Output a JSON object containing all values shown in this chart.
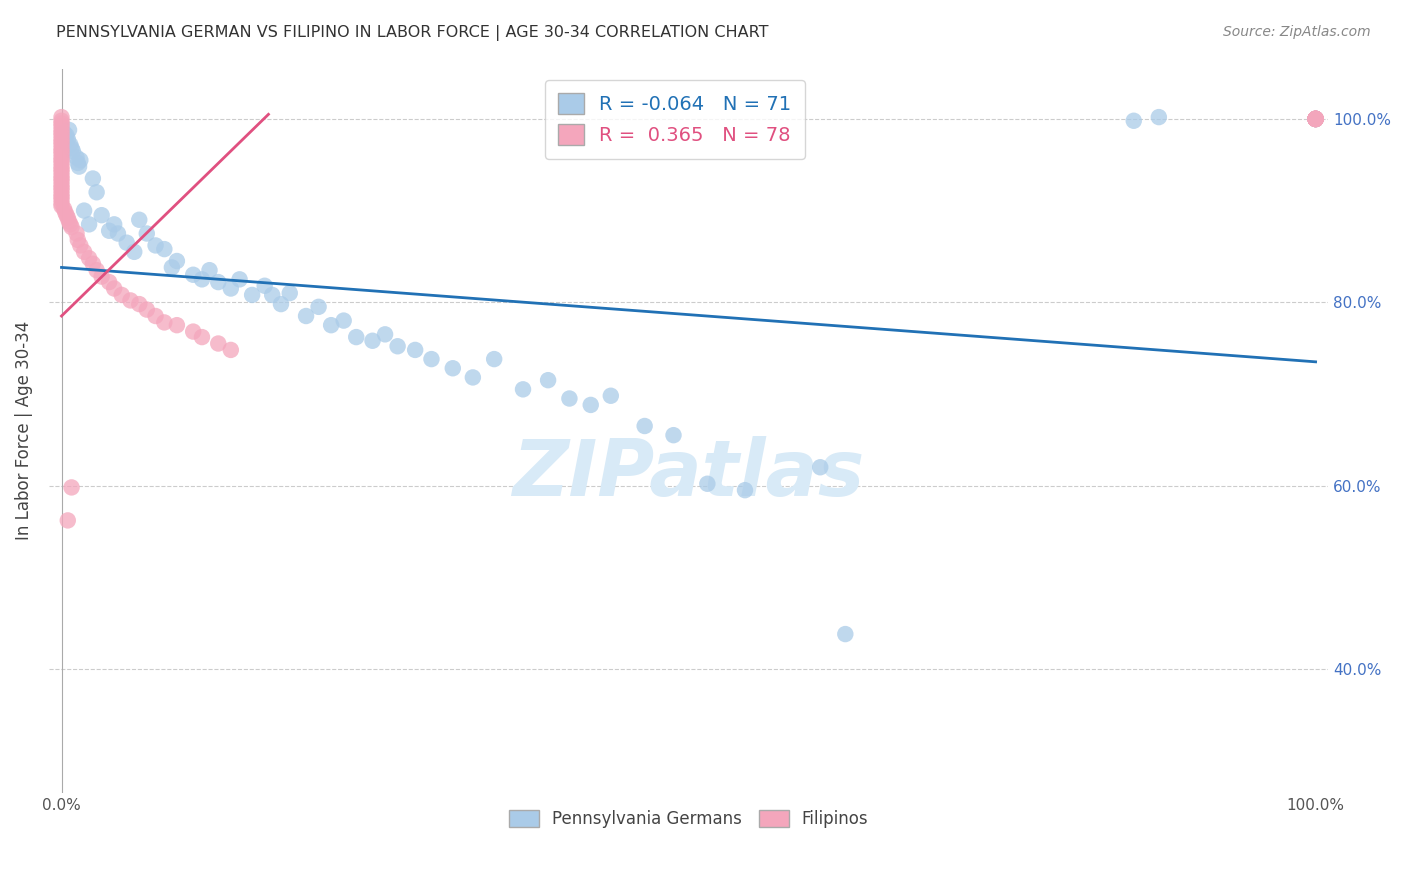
{
  "title": "PENNSYLVANIA GERMAN VS FILIPINO IN LABOR FORCE | AGE 30-34 CORRELATION CHART",
  "source": "Source: ZipAtlas.com",
  "ylabel": "In Labor Force | Age 30-34",
  "x_tick_labels": [
    "0.0%",
    "",
    "",
    "",
    "",
    "100.0%"
  ],
  "x_tick_vals": [
    0,
    0.2,
    0.4,
    0.6,
    0.8,
    1.0
  ],
  "y_tick_vals_right": [
    1.0,
    0.8,
    0.6,
    0.4
  ],
  "y_tick_labels_right": [
    "100.0%",
    "80.0%",
    "60.0%",
    "40.0%"
  ],
  "xlim": [
    -0.01,
    1.01
  ],
  "ylim": [
    0.265,
    1.055
  ],
  "legend_label_blue": "Pennsylvania Germans",
  "legend_label_pink": "Filipinos",
  "R_blue": -0.064,
  "N_blue": 71,
  "R_pink": 0.365,
  "N_pink": 78,
  "blue_trendline_x": [
    0.0,
    1.0
  ],
  "blue_trendline_y": [
    0.838,
    0.735
  ],
  "pink_trendline_x": [
    0.0,
    0.165
  ],
  "pink_trendline_y": [
    0.785,
    1.005
  ],
  "blue_color": "#aacbe8",
  "blue_line_color": "#2171b5",
  "pink_color": "#f4a6bc",
  "pink_line_color": "#e05080",
  "background_color": "#ffffff",
  "grid_color": "#cccccc",
  "watermark_color": "#d8eaf7",
  "blue_x": [
    0.002,
    0.003,
    0.004,
    0.005,
    0.006,
    0.007,
    0.008,
    0.009,
    0.012,
    0.013,
    0.014,
    0.015,
    0.018,
    0.022,
    0.025,
    0.028,
    0.032,
    0.038,
    0.042,
    0.045,
    0.052,
    0.058,
    0.062,
    0.068,
    0.075,
    0.082,
    0.088,
    0.092,
    0.105,
    0.112,
    0.118,
    0.125,
    0.135,
    0.142,
    0.152,
    0.162,
    0.168,
    0.175,
    0.182,
    0.195,
    0.205,
    0.215,
    0.225,
    0.235,
    0.248,
    0.258,
    0.268,
    0.282,
    0.295,
    0.312,
    0.328,
    0.345,
    0.368,
    0.388,
    0.405,
    0.422,
    0.438,
    0.465,
    0.488,
    0.515,
    0.545,
    0.605,
    0.625,
    0.855,
    0.875,
    1.0,
    1.0,
    1.0,
    1.0,
    1.0
  ],
  "blue_y": [
    0.985,
    0.975,
    0.982,
    0.978,
    0.988,
    0.972,
    0.968,
    0.965,
    0.958,
    0.952,
    0.948,
    0.955,
    0.9,
    0.885,
    0.935,
    0.92,
    0.895,
    0.878,
    0.885,
    0.875,
    0.865,
    0.855,
    0.89,
    0.875,
    0.862,
    0.858,
    0.838,
    0.845,
    0.83,
    0.825,
    0.835,
    0.822,
    0.815,
    0.825,
    0.808,
    0.818,
    0.808,
    0.798,
    0.81,
    0.785,
    0.795,
    0.775,
    0.78,
    0.762,
    0.758,
    0.765,
    0.752,
    0.748,
    0.738,
    0.728,
    0.718,
    0.738,
    0.705,
    0.715,
    0.695,
    0.688,
    0.698,
    0.665,
    0.655,
    0.602,
    0.595,
    0.62,
    0.438,
    0.998,
    1.002,
    1.0,
    1.0,
    1.0,
    1.0,
    1.0
  ],
  "pink_x": [
    0.0,
    0.0,
    0.0,
    0.0,
    0.0,
    0.0,
    0.0,
    0.0,
    0.0,
    0.0,
    0.0,
    0.0,
    0.0,
    0.0,
    0.0,
    0.0,
    0.0,
    0.0,
    0.0,
    0.0,
    0.0,
    0.0,
    0.0,
    0.0,
    0.0,
    0.0,
    0.0,
    0.0,
    0.0,
    0.0,
    0.002,
    0.003,
    0.004,
    0.005,
    0.006,
    0.007,
    0.008,
    0.012,
    0.013,
    0.015,
    0.018,
    0.022,
    0.025,
    0.028,
    0.032,
    0.038,
    0.042,
    0.048,
    0.055,
    0.062,
    0.068,
    0.075,
    0.082,
    0.092,
    0.105,
    0.112,
    0.125,
    0.135,
    0.005,
    0.008,
    1.0,
    1.0,
    1.0,
    1.0,
    1.0,
    1.0,
    1.0,
    1.0,
    1.0,
    1.0,
    1.0,
    1.0,
    1.0
  ],
  "pink_y": [
    1.002,
    0.998,
    0.995,
    0.992,
    0.988,
    0.985,
    0.982,
    0.978,
    0.975,
    0.972,
    0.968,
    0.965,
    0.962,
    0.958,
    0.955,
    0.952,
    0.948,
    0.945,
    0.942,
    0.938,
    0.935,
    0.932,
    0.928,
    0.925,
    0.922,
    0.918,
    0.915,
    0.912,
    0.908,
    0.905,
    0.902,
    0.898,
    0.895,
    0.892,
    0.888,
    0.885,
    0.882,
    0.875,
    0.868,
    0.862,
    0.855,
    0.848,
    0.842,
    0.835,
    0.828,
    0.822,
    0.815,
    0.808,
    0.802,
    0.798,
    0.792,
    0.785,
    0.778,
    0.775,
    0.768,
    0.762,
    0.755,
    0.748,
    0.562,
    0.598,
    1.0,
    1.0,
    1.0,
    1.0,
    1.0,
    1.0,
    1.0,
    1.0,
    1.0,
    1.0,
    1.0,
    1.0,
    1.0
  ]
}
